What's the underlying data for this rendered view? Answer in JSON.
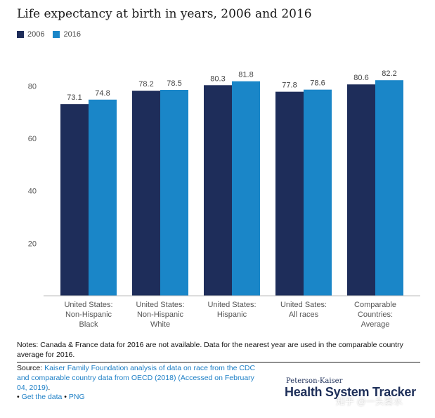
{
  "chart_data": {
    "type": "bar",
    "title": "Life expectancy at birth in years, 2006 and 2016",
    "categories": [
      [
        "United States:",
        "Non-Hispanic",
        "Black"
      ],
      [
        "United States:",
        "Non-Hispanic",
        "White"
      ],
      [
        "United States:",
        "Hispanic"
      ],
      [
        "United Sates:",
        "All races"
      ],
      [
        "Comparable",
        "Countries:",
        "Average"
      ]
    ],
    "series": [
      {
        "name": "2006",
        "color": "#1e2d5a",
        "values": [
          73.1,
          78.2,
          80.3,
          77.8,
          80.6
        ],
        "labels": [
          "73.1",
          "78.2",
          "80.3",
          "77.8",
          "80.6"
        ]
      },
      {
        "name": "2016",
        "color": "#1a86c8",
        "values": [
          74.8,
          78.5,
          81.8,
          78.6,
          82.2
        ],
        "labels": [
          "74.8",
          "78.5",
          "81.8",
          "78.6",
          "82.2"
        ]
      }
    ],
    "yticks": [
      20,
      40,
      60,
      80
    ],
    "ylim": [
      0,
      86
    ],
    "xlabel": "",
    "ylabel": "",
    "grid": false,
    "legend_position": "top-left"
  },
  "notes": "Notes: Canada & France data for 2016 are not available. Data for the nearest year are used in the comparable country average for 2016.",
  "source": {
    "prefix": "Source: ",
    "link_text": "Kaiser Family Foundation analysis of data on race from the CDC and comparable country data from OECD (2018) (Accessed on February 04, 2019)",
    "suffix": "."
  },
  "links": {
    "bullet1": "• ",
    "get_data": "Get the data",
    "bullet2": " • ",
    "png": "PNG"
  },
  "brand": {
    "small": "Peterson-Kaiser",
    "big": "Health System Tracker"
  },
  "watermark": "知乎 @一头雾水"
}
